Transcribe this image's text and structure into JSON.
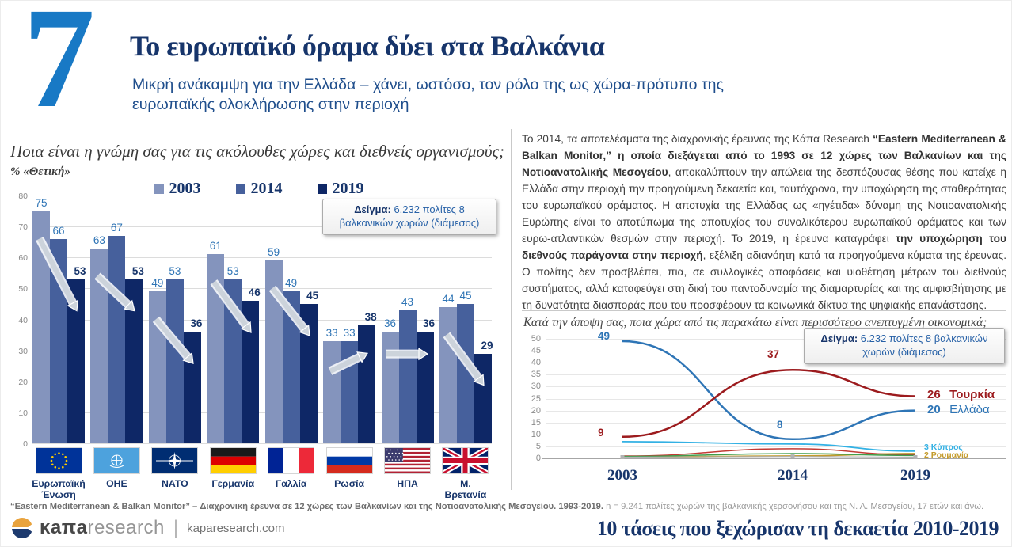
{
  "slide": {
    "number": "7",
    "title": "Το ευρωπαϊκό όραμα δύει στα Βαλκάνια",
    "subtitle": "Μικρή ανάκαμψη για την Ελλάδα – χάνει, ωστόσο, τον ρόλο της ως χώρα-πρότυπο της ευρωπαϊκής ολοκλήρωσης στην περιοχή"
  },
  "colors": {
    "accent_blue": "#1879c5",
    "navy": "#17356b",
    "bar_2003": "#8494bd",
    "bar_2014": "#46609c",
    "bar_2019": "#0e2766",
    "value_label_blue": "#2e74b5",
    "arrow_gray": "#ccd3db",
    "grid_gray": "#dcdcdc"
  },
  "sample_box": {
    "label": "Δείγμα:",
    "text": " 6.232 πολίτες 8 βαλκανικών χωρών (διάμεσος)"
  },
  "chart_data": [
    {
      "id": "opinion-bars",
      "type": "bar",
      "title": "Ποια είναι η γνώμη σας για τις ακόλουθες χώρες και διεθνείς οργανισμούς;",
      "metric": "% «Θετική»",
      "categories": [
        "Ευρωπαϊκή Ένωση",
        "ΟΗΕ",
        "NATO",
        "Γερμανία",
        "Γαλλία",
        "Ρωσία",
        "ΗΠΑ",
        "Μ. Βρετανία"
      ],
      "flag_icons": [
        "eu-flag",
        "un-flag",
        "nato-flag",
        "germany-flag",
        "france-flag",
        "russia-flag",
        "usa-flag",
        "uk-flag"
      ],
      "series": [
        {
          "name": "2003",
          "color": "#8494bd",
          "values": [
            75,
            63,
            49,
            61,
            59,
            33,
            36,
            44
          ]
        },
        {
          "name": "2014",
          "color": "#46609c",
          "values": [
            66,
            67,
            53,
            53,
            49,
            33,
            43,
            45
          ]
        },
        {
          "name": "2019",
          "color": "#0e2766",
          "values": [
            53,
            53,
            36,
            46,
            45,
            38,
            36,
            29
          ]
        }
      ],
      "ylim": [
        0,
        80
      ],
      "ytick": 10,
      "grid": true,
      "legend_position": "top",
      "trend_arrows": [
        "down",
        "down",
        "down",
        "down",
        "down",
        "up",
        "flat",
        "down"
      ]
    },
    {
      "id": "developed-economy-lines",
      "type": "line",
      "title": "Κατά την άποψη σας, ποια χώρα από τις παρακάτω είναι περισσότερο ανεπτυγμένη οικονομικά;",
      "x": [
        "2003",
        "2014",
        "2019"
      ],
      "ylim": [
        0,
        50
      ],
      "ytick": 5,
      "grid": true,
      "legend_position": "end-of-line",
      "series": [
        {
          "name": "Ελλάδα",
          "color": "#2e75b6",
          "width": 2.5,
          "values": [
            49,
            8,
            20
          ],
          "point_labels": [
            "49",
            "8"
          ],
          "end_value": "20",
          "end_name": "Ελλάδα",
          "bold_end": false
        },
        {
          "name": "Τουρκία",
          "color": "#9c1b1e",
          "width": 2.5,
          "values": [
            9,
            37,
            26
          ],
          "point_labels": [
            "9",
            "37"
          ],
          "end_value": "26",
          "end_name": "Τουρκία",
          "bold_end": true
        },
        {
          "name": "Κύπρος",
          "color": "#33b1e4",
          "width": 1.8,
          "values": [
            7,
            6,
            3
          ],
          "point_labels": [],
          "end_value": "3",
          "end_name": "Κύπρος",
          "small": true
        },
        {
          "name": "Ρουμανία",
          "color": "#c49b2c",
          "width": 1.8,
          "values": [
            0.5,
            1,
            2
          ],
          "point_labels": [],
          "end_value": "2",
          "end_name": "Ρουμανία",
          "small": true
        },
        {
          "name": "",
          "color": "#c23a34",
          "width": 1.5,
          "values": [
            1,
            4,
            1.5
          ],
          "point_labels": []
        },
        {
          "name": "",
          "color": "#3f9e4d",
          "width": 1.5,
          "values": [
            0.8,
            2,
            1.2
          ],
          "point_labels": []
        },
        {
          "name": "",
          "color": "#b3b3b3",
          "width": 1.2,
          "values": [
            0.5,
            0.8,
            0.5
          ],
          "point_labels": [],
          "marker": "square"
        }
      ]
    }
  ],
  "right_text": {
    "segments": [
      {
        "t": "Το 2014, τα αποτελέσματα της διαχρονικής έρευνας της Κάπα Research ",
        "b": false
      },
      {
        "t": "“Eastern Mediterranean & Balkan Monitor,” η οποία διεξάγεται από το 1993 σε 12 χώρες των Βαλκανίων και της Νοτιοανατολικής Μεσογείου",
        "b": true
      },
      {
        "t": ", αποκαλύπτουν την απώλεια της δεσπόζουσας θέσης που κατείχε η Ελλάδα στην περιοχή την προηγούμενη δεκαετία και, ταυτόχρονα, την υποχώρηση της σταθερότητας του ευρωπαϊκού οράματος. Η αποτυχία της Ελλάδας ως «ηγέτιδα» δύναμη της Νοτιοανατολικής Ευρώπης είναι το αποτύπωμα της αποτυχίας του συνολικότερου ευρωπαϊκού οράματος και των ευρω-ατλαντικών θεσμών στην περιοχή.  Το 2019, η έρευνα καταγράφει ",
        "b": false
      },
      {
        "t": "την υποχώρηση του διεθνούς παράγοντα στην περιοχή",
        "b": true
      },
      {
        "t": ", εξέλιξη αδιανόητη κατά τα προηγούμενα κύματα της έρευνας. Ο πολίτης δεν προσβλέπει, πια, σε συλλογικές αποφάσεις και υιοθέτηση μέτρων του διεθνούς συστήματος, αλλά καταφεύγει στη δική του παντοδυναμία της διαμαρτυρίας και της αμφισβήτησης με τη δυνατότητα διασποράς που του προσφέρουν τα κοινωνικά δίκτυα της ψηφιακής επανάστασης.",
        "b": false
      }
    ]
  },
  "footnote": {
    "bold": "“Eastern Mediterranean & Balkan Monitor” – Διαχρονική έρευνα σε 12 χώρες των Βαλκανίων και της Νοτιοανατολικής Μεσογείου. 1993-2019.",
    "regular": " n = 9.241 πολίτες χωρών της βαλκανικής χερσονήσου και της Ν. Α. Μεσογείου, 17 ετών και άνω."
  },
  "footer": {
    "logo_kapa": "κaπa",
    "logo_research": "research",
    "site": "kaparesearch.com",
    "slogan": "10 τάσεις που ξεχώρισαν τη δεκαετία 2010-2019"
  }
}
